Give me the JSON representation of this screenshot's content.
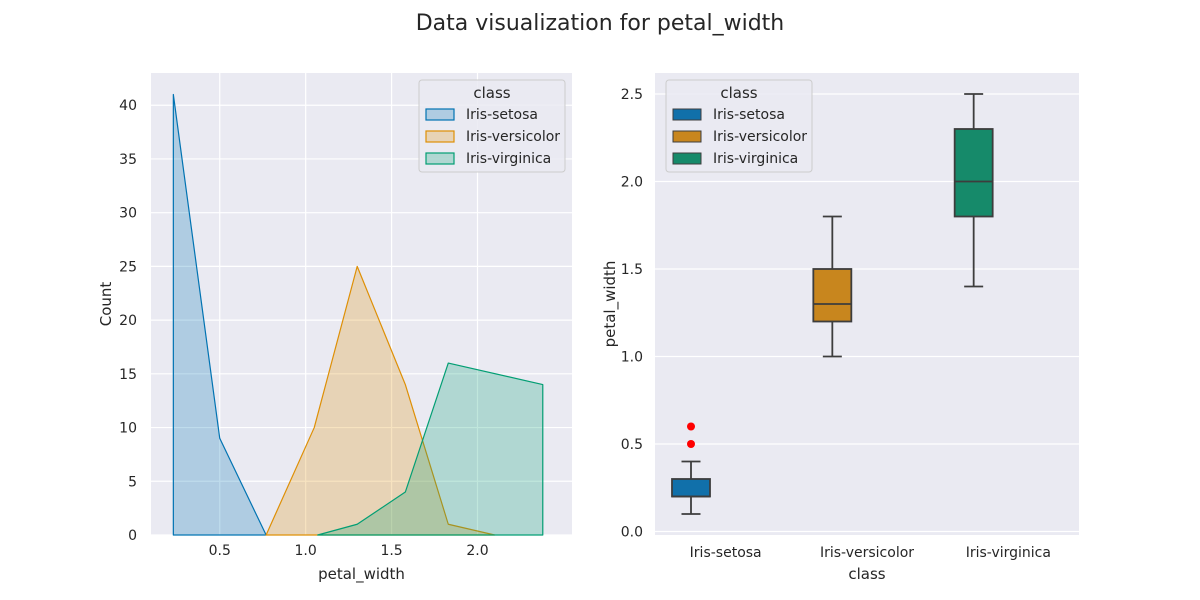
{
  "figure": {
    "title": "Data visualization for petal_width"
  },
  "chart_data": [
    {
      "type": "area",
      "subtype": "histogram-poly",
      "xlabel": "petal_width",
      "ylabel": "Count",
      "xlim": [
        0.1,
        2.55
      ],
      "ylim": [
        0,
        43
      ],
      "xticks": [
        0.5,
        1.0,
        1.5,
        2.0
      ],
      "xtick_labels": [
        "0.5",
        "1.0",
        "1.5",
        "2.0"
      ],
      "yticks": [
        0,
        5,
        10,
        15,
        20,
        25,
        30,
        35,
        40
      ],
      "ytick_labels": [
        "0",
        "5",
        "10",
        "15",
        "20",
        "25",
        "30",
        "35",
        "40"
      ],
      "grid": true,
      "legend": {
        "title": "class",
        "placement": "top-right"
      },
      "series": [
        {
          "name": "Iris-setosa",
          "color": "#0173b2",
          "x": [
            0.23,
            0.5,
            0.77
          ],
          "y": [
            41,
            9,
            0
          ]
        },
        {
          "name": "Iris-versicolor",
          "color": "#de8f05",
          "x": [
            0.77,
            1.05,
            1.3,
            1.58,
            1.83,
            2.1
          ],
          "y": [
            0,
            10,
            25,
            14,
            1,
            0
          ]
        },
        {
          "name": "Iris-virginica",
          "color": "#029e73",
          "x": [
            1.07,
            1.3,
            1.58,
            1.83,
            2.38
          ],
          "y": [
            0,
            1,
            4,
            16,
            14
          ]
        }
      ]
    },
    {
      "type": "box",
      "xlabel": "class",
      "ylabel": "petal_width",
      "ylim": [
        -0.02,
        2.62
      ],
      "yticks": [
        0.0,
        0.5,
        1.0,
        1.5,
        2.0,
        2.5
      ],
      "ytick_labels": [
        "0.0",
        "0.5",
        "1.0",
        "1.5",
        "2.0",
        "2.5"
      ],
      "categories": [
        "Iris-setosa",
        "Iris-versicolor",
        "Iris-virginica"
      ],
      "grid": true,
      "legend": {
        "title": "class",
        "placement": "top-left"
      },
      "outlier_color": "#ff0000",
      "series": [
        {
          "name": "Iris-setosa",
          "color": "#1170aa",
          "whisker_low": 0.1,
          "q1": 0.2,
          "median": 0.2,
          "q3": 0.3,
          "whisker_high": 0.4,
          "outliers": [
            0.5,
            0.6
          ]
        },
        {
          "name": "Iris-versicolor",
          "color": "#c8861e",
          "whisker_low": 1.0,
          "q1": 1.2,
          "median": 1.3,
          "q3": 1.5,
          "whisker_high": 1.8,
          "outliers": []
        },
        {
          "name": "Iris-virginica",
          "color": "#168a6a",
          "whisker_low": 1.4,
          "q1": 1.8,
          "median": 2.0,
          "q3": 2.3,
          "whisker_high": 2.5,
          "outliers": []
        }
      ]
    }
  ]
}
